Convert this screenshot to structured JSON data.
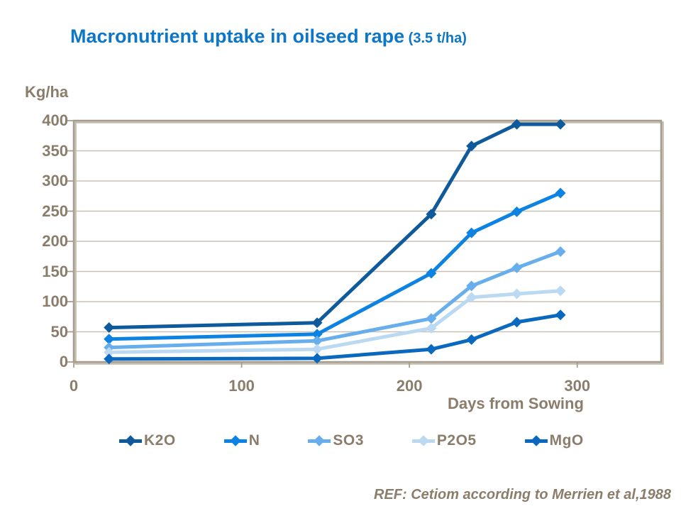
{
  "title": {
    "main": "Macronutrient uptake in oilseed rape",
    "suffix": " (3.5 t/ha)"
  },
  "y_axis": {
    "unit_label": "Kg/ha",
    "ticks": [
      400,
      350,
      300,
      250,
      200,
      150,
      100,
      50,
      0
    ]
  },
  "x_axis": {
    "title": "Days from Sowing",
    "ticks": [
      0,
      100,
      200,
      300
    ]
  },
  "footer": {
    "ref": "REF: Cetiom according to Merrien et al,1988"
  },
  "colors": {
    "title_text": "#0d76c6",
    "axis_text": "#8b7d6b",
    "frame": "#a79d8f",
    "frame_shadow": "#c2baad",
    "gridline": "#c9c1b5"
  },
  "chart_data": {
    "type": "line",
    "title": "Macronutrient uptake in oilseed rape (3.5 t/ha)",
    "xlabel": "Days from Sowing",
    "ylabel": "Kg/ha",
    "xlim": [
      0,
      350
    ],
    "ylim": [
      0,
      400
    ],
    "x_tick_step": 100,
    "y_tick_step": 50,
    "grid": "horizontal",
    "legend_position": "bottom",
    "marker": "diamond",
    "x": [
      21,
      145,
      213,
      237,
      264,
      290
    ],
    "series": [
      {
        "name": "K2O",
        "color": "#0f5a9b",
        "values": [
          57,
          65,
          245,
          358,
          394,
          394
        ]
      },
      {
        "name": "N",
        "color": "#0c83e2",
        "values": [
          38,
          46,
          147,
          214,
          249,
          280
        ]
      },
      {
        "name": "SO3",
        "color": "#68aeec",
        "values": [
          24,
          35,
          72,
          126,
          156,
          183
        ]
      },
      {
        "name": "P2O5",
        "color": "#bcd9f2",
        "values": [
          16,
          21,
          56,
          107,
          113,
          118
        ]
      },
      {
        "name": "MgO",
        "color": "#0a69be",
        "values": [
          5,
          6,
          21,
          37,
          66,
          78
        ]
      }
    ]
  }
}
